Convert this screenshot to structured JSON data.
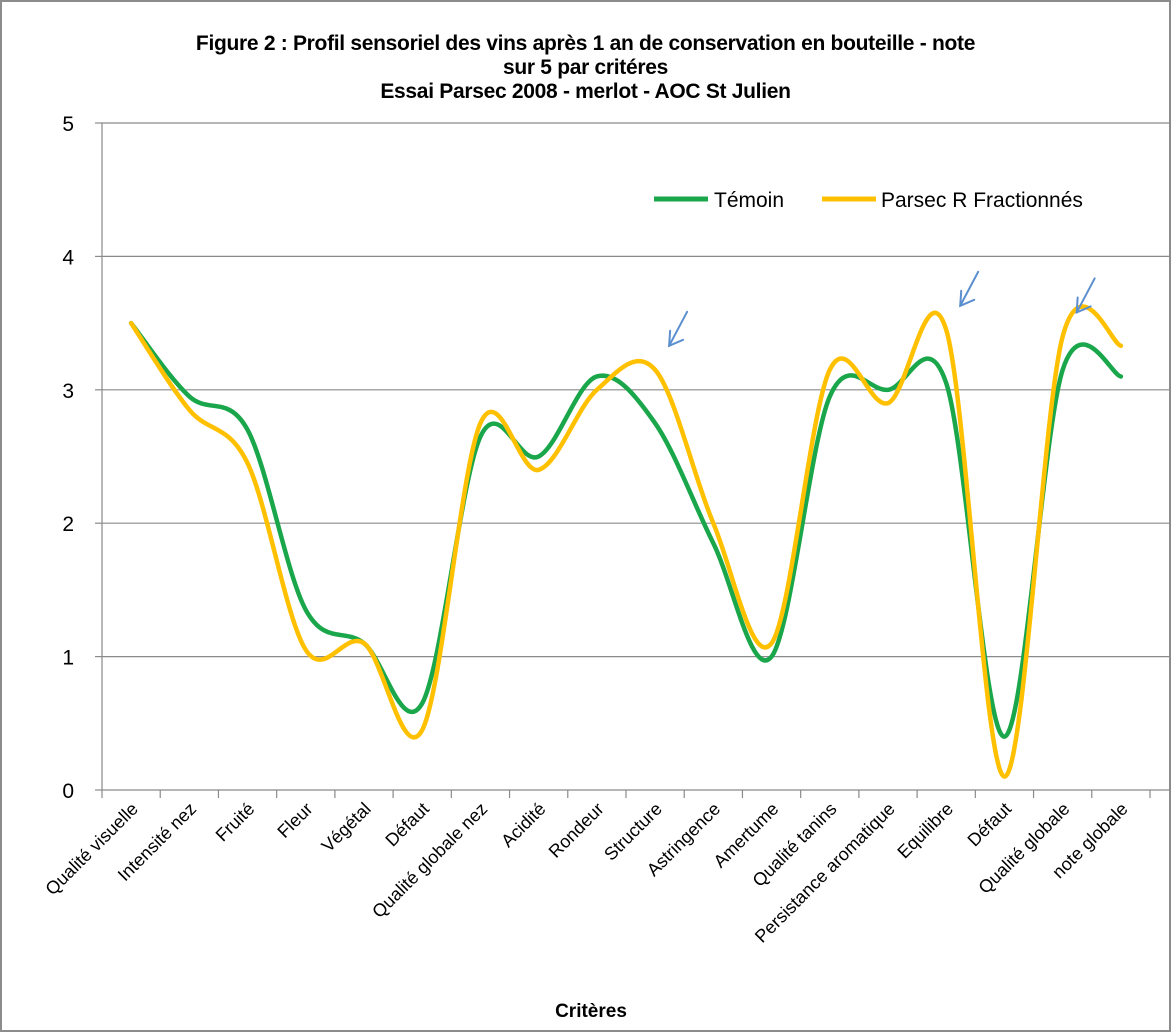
{
  "chart_data": {
    "type": "line",
    "title_lines": [
      "Figure 2 : Profil sensoriel des vins après 1 an de conservation en bouteille - note",
      "sur 5 par critéres",
      "Essai Parsec 2008 - merlot - AOC St Julien"
    ],
    "xlabel": "Critères",
    "ylabel": "",
    "ylim": [
      0,
      5
    ],
    "yticks": [
      0,
      1,
      2,
      3,
      4,
      5
    ],
    "grid": "horizontal",
    "legend_position": "top-right",
    "categories": [
      "Qualité visuelle",
      "Intensité nez",
      "Fruité",
      "Fleur",
      "Végétal",
      "Défaut",
      "Qualité globale nez",
      "Acidité",
      "Rondeur",
      "Structure",
      "Astringence",
      "Amertume",
      "Qualité tanins",
      "Persistance aromatique",
      "Equilibre",
      "Défaut",
      "Qualité globale",
      "note globale"
    ],
    "series": [
      {
        "name": "Témoin",
        "color": "#1aa64a",
        "values": [
          3.5,
          2.95,
          2.7,
          1.35,
          1.1,
          0.65,
          2.65,
          2.5,
          3.1,
          2.75,
          1.85,
          1.0,
          2.95,
          3.0,
          3.05,
          0.4,
          3.15,
          3.1
        ]
      },
      {
        "name": "Parsec R Fractionnés",
        "color": "#ffc000",
        "values": [
          3.5,
          2.85,
          2.45,
          1.05,
          1.1,
          0.45,
          2.75,
          2.4,
          3.0,
          3.15,
          2.0,
          1.1,
          3.15,
          2.9,
          3.45,
          0.1,
          3.4,
          3.33
        ]
      }
    ],
    "annotations": [
      {
        "type": "arrow",
        "near_category": "Structure",
        "color": "#5b8fd0"
      },
      {
        "type": "arrow",
        "near_category": "Equilibre",
        "color": "#5b8fd0"
      },
      {
        "type": "arrow",
        "near_category": "Qualité globale",
        "color": "#5b8fd0"
      }
    ]
  }
}
